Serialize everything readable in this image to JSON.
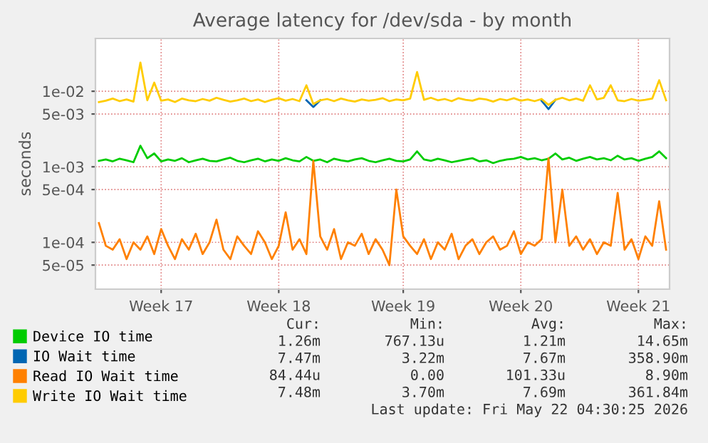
{
  "chart_data": {
    "type": "line",
    "title": "Average latency for /dev/sda - by month",
    "ylabel": "seconds",
    "log": "y",
    "grid": true,
    "legend": "bottom",
    "line_style": "solid",
    "marker": "none",
    "categories": [
      null,
      null,
      null,
      null,
      null,
      null,
      null,
      null,
      null,
      "Week 17",
      null,
      null,
      null,
      null,
      null,
      null,
      null,
      null,
      null,
      null,
      null,
      null,
      null,
      null,
      null,
      null,
      "Week 18",
      null,
      null,
      null,
      null,
      null,
      null,
      null,
      null,
      null,
      null,
      null,
      null,
      null,
      null,
      null,
      null,
      null,
      "Week 19",
      null,
      null,
      null,
      null,
      null,
      null,
      null,
      null,
      null,
      null,
      null,
      null,
      null,
      null,
      null,
      null,
      "Week 20",
      null,
      null,
      null,
      null,
      null,
      null,
      null,
      null,
      null,
      null,
      null,
      null,
      null,
      null,
      null,
      null,
      "Week 21",
      null,
      null,
      null,
      null
    ],
    "ylim": [
      2.4e-05,
      0.05
    ],
    "yticks": [
      {
        "value": 5e-05,
        "label": "5e-05"
      },
      {
        "value": 0.0001,
        "label": "1e-04"
      },
      {
        "value": 0.0005,
        "label": "5e-04"
      },
      {
        "value": 0.001,
        "label": "1e-03"
      },
      {
        "value": 0.005,
        "label": "5e-03"
      },
      {
        "value": 0.01,
        "label": "1e-02"
      }
    ],
    "series": [
      {
        "name": "Device IO time",
        "color": "#00cc00",
        "values": [
          0.0012,
          0.00125,
          0.00118,
          0.00128,
          0.00122,
          0.00115,
          0.0019,
          0.0013,
          0.0015,
          0.00118,
          0.00125,
          0.0012,
          0.0013,
          0.00115,
          0.00122,
          0.00128,
          0.0012,
          0.00118,
          0.00125,
          0.00132,
          0.0012,
          0.00115,
          0.00122,
          0.00128,
          0.00118,
          0.00125,
          0.0012,
          0.0013,
          0.00122,
          0.00118,
          0.00135,
          0.0012,
          0.00125,
          0.00115,
          0.00128,
          0.00122,
          0.00118,
          0.00125,
          0.0013,
          0.0012,
          0.00115,
          0.00122,
          0.00128,
          0.0012,
          0.00118,
          0.00125,
          0.0016,
          0.00125,
          0.0012,
          0.00128,
          0.00122,
          0.00115,
          0.0012,
          0.00125,
          0.0013,
          0.00118,
          0.00122,
          0.00112,
          0.0012,
          0.00125,
          0.00128,
          0.00135,
          0.00125,
          0.0013,
          0.00122,
          0.00128,
          0.0015,
          0.00125,
          0.00132,
          0.0012,
          0.00128,
          0.00135,
          0.00125,
          0.0013,
          0.00122,
          0.0014,
          0.00125,
          0.0013,
          0.0012,
          0.00128,
          0.00135,
          0.0016,
          0.0013
        ]
      },
      {
        "name": "IO Wait time",
        "color": "#0066b3",
        "values": [
          null,
          null,
          null,
          null,
          null,
          null,
          null,
          null,
          null,
          null,
          null,
          null,
          null,
          null,
          null,
          null,
          null,
          null,
          null,
          null,
          null,
          null,
          null,
          null,
          null,
          null,
          null,
          null,
          null,
          null,
          0.0076,
          0.0062,
          0.0076,
          null,
          null,
          null,
          null,
          null,
          null,
          null,
          null,
          null,
          null,
          null,
          null,
          null,
          null,
          null,
          null,
          null,
          null,
          null,
          null,
          null,
          null,
          null,
          null,
          null,
          null,
          null,
          null,
          null,
          null,
          null,
          0.0075,
          0.0058,
          0.0077,
          null,
          null,
          null,
          null,
          null,
          null,
          null,
          null,
          null,
          null,
          null,
          null,
          null,
          null,
          null,
          null
        ]
      },
      {
        "name": "Read IO Wait time",
        "color": "#ff8000",
        "values": [
          0.00018,
          9e-05,
          8e-05,
          0.00011,
          6e-05,
          0.0001,
          8e-05,
          0.00012,
          7e-05,
          0.00015,
          9e-05,
          6e-05,
          0.00011,
          8e-05,
          0.00013,
          7e-05,
          0.0001,
          0.0002,
          8e-05,
          6e-05,
          0.00012,
          9e-05,
          7e-05,
          0.00014,
          0.0001,
          6e-05,
          9e-05,
          0.00025,
          8e-05,
          0.00011,
          7e-05,
          0.0012,
          0.00012,
          8e-05,
          0.00015,
          6e-05,
          0.0001,
          9e-05,
          0.00013,
          7e-05,
          0.00011,
          8e-05,
          5e-05,
          0.0005,
          0.00012,
          9e-05,
          7e-05,
          0.00011,
          6e-05,
          0.0001,
          8e-05,
          0.00013,
          6e-05,
          9e-05,
          0.00011,
          7e-05,
          0.0001,
          0.00012,
          8e-05,
          9e-05,
          0.00014,
          7e-05,
          0.0001,
          9e-05,
          0.00011,
          0.0013,
          0.0001,
          0.0005,
          9e-05,
          0.00012,
          8e-05,
          0.00011,
          7e-05,
          0.0001,
          9e-05,
          0.00045,
          8e-05,
          0.00011,
          6e-05,
          0.00012,
          9e-05,
          0.00035,
          8e-05
        ]
      },
      {
        "name": "Write IO Wait time",
        "color": "#ffcc00",
        "values": [
          0.0072,
          0.0075,
          0.008,
          0.0074,
          0.0078,
          0.0073,
          0.024,
          0.0076,
          0.013,
          0.0075,
          0.0078,
          0.0072,
          0.008,
          0.0076,
          0.0074,
          0.0079,
          0.0075,
          0.0082,
          0.0077,
          0.0073,
          0.0076,
          0.008,
          0.0074,
          0.0078,
          0.0072,
          0.0077,
          0.0081,
          0.0075,
          0.0079,
          0.0074,
          0.012,
          0.0068,
          0.0076,
          0.0079,
          0.0074,
          0.008,
          0.0076,
          0.0073,
          0.0078,
          0.0075,
          0.0077,
          0.0081,
          0.0074,
          0.0078,
          0.0076,
          0.008,
          0.018,
          0.0077,
          0.0082,
          0.0076,
          0.0079,
          0.0074,
          0.0081,
          0.0077,
          0.0075,
          0.008,
          0.0078,
          0.0073,
          0.0079,
          0.0076,
          0.0081,
          0.0075,
          0.0078,
          0.0074,
          0.0079,
          0.0066,
          0.0077,
          0.0082,
          0.0076,
          0.008,
          0.0075,
          0.012,
          0.0078,
          0.0082,
          0.012,
          0.0076,
          0.0074,
          0.0079,
          0.0075,
          0.0077,
          0.008,
          0.014,
          0.0076
        ]
      }
    ],
    "annotations": [
      "Cur:",
      "Min:",
      "Avg:",
      "Max:",
      "1.26m",
      "767.13u",
      "1.21m",
      "14.65m",
      "7.47m",
      "3.22m",
      "7.67m",
      "358.90m",
      "84.44u",
      "0.00",
      "101.33u",
      "8.90m",
      "7.48m",
      "3.70m",
      "7.69m",
      "361.84m",
      "Last update: Fri May 22 04:30:25 2026"
    ]
  }
}
